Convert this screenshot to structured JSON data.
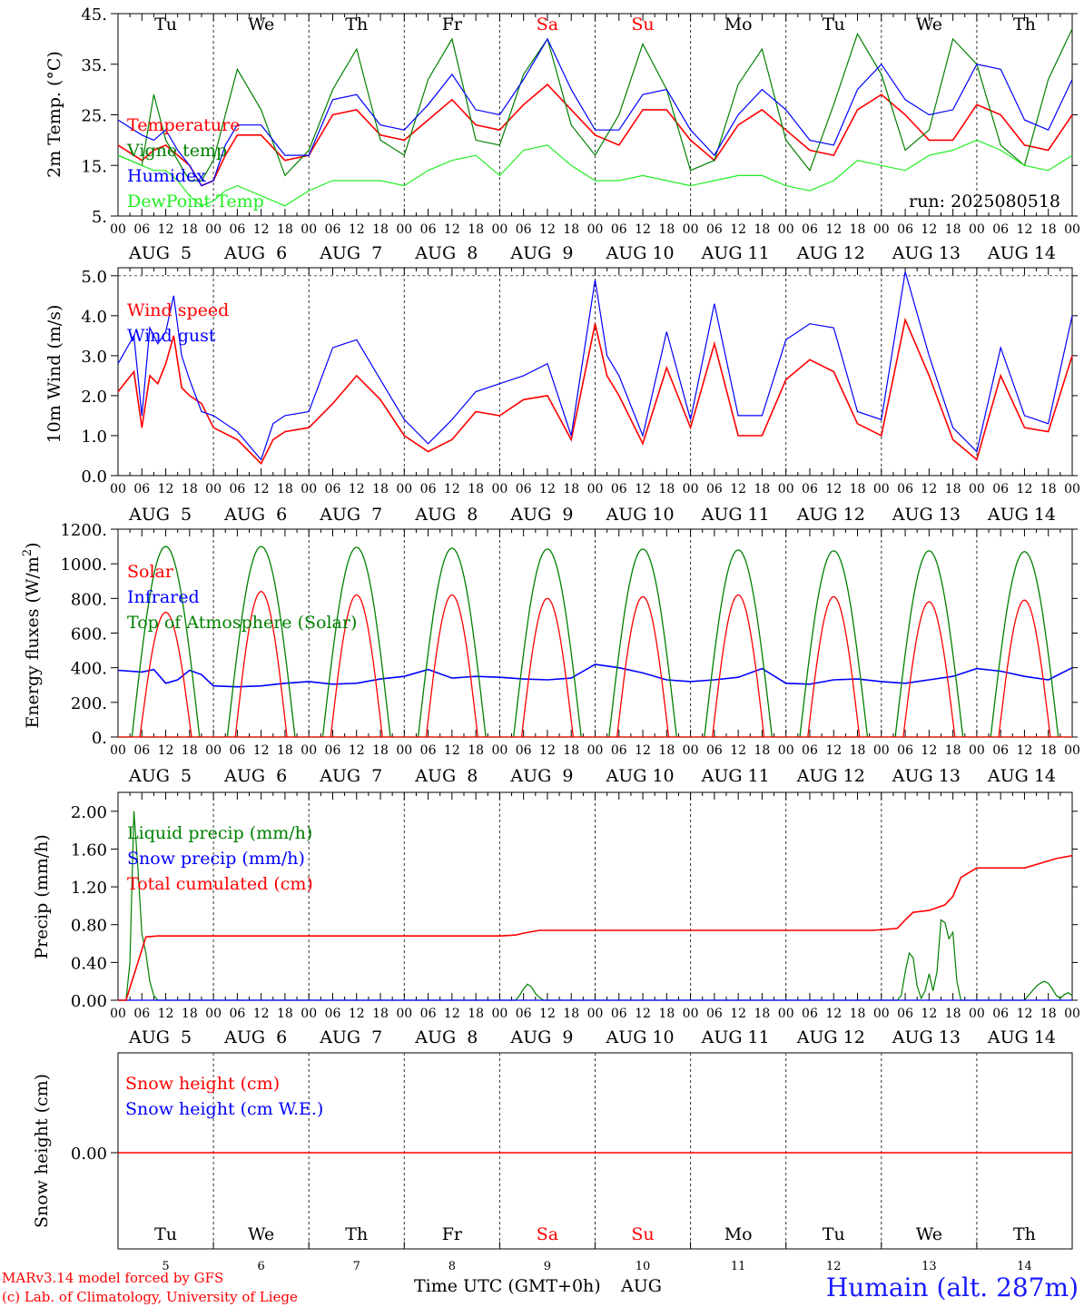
{
  "colors": {
    "red": "#ff0000",
    "green": "#008000",
    "lightgreen": "#22ee22",
    "blue": "#0000ff",
    "humain": "#1a1aff"
  },
  "days": [
    "Tu",
    "We",
    "Th",
    "Fr",
    "Sa",
    "Su",
    "Mo",
    "Tu",
    "We",
    "Th"
  ],
  "weekend_days": [
    "Sa",
    "Su"
  ],
  "hour_ticks": [
    "00",
    "06",
    "12",
    "18"
  ],
  "dates_under": [
    "AUG  5",
    "AUG  6",
    "AUG  7",
    "AUG  8",
    "AUG  9",
    "AUG 10",
    "AUG 11",
    "AUG 12",
    "AUG 13",
    "AUG 14"
  ],
  "bottom_dates": [
    "5",
    "6",
    "7",
    "8",
    "9",
    "10",
    "11",
    "12",
    "13",
    "14"
  ],
  "footer": {
    "model_line": "MARv3.14 model forced by GFS",
    "copyright_line": "(c) Lab. of Climatology, University of Liege",
    "axis_title": "Time UTC (GMT+0h)",
    "month": "AUG",
    "station": "Humain (alt. 287m)"
  },
  "chart_data": [
    {
      "type": "line",
      "id": "temp",
      "ylabel": "2m Temp. (°C)",
      "ylim": [
        5,
        45
      ],
      "ytick_labels": [
        "5.",
        "15.",
        "25.",
        "35.",
        "45."
      ],
      "ytick_values": [
        5,
        15,
        25,
        35,
        45
      ],
      "annotation": "run: 2025080518",
      "x_unit": "hours from 2025-08-05 00 UTC",
      "series": [
        {
          "name": "Temperature",
          "color": "#ff0000",
          "x": [
            0,
            6,
            9,
            12,
            15,
            18,
            21,
            24,
            27,
            30,
            36,
            42,
            48,
            54,
            60,
            66,
            72,
            78,
            84,
            90,
            96,
            102,
            108,
            114,
            120,
            126,
            132,
            138,
            144,
            150,
            156,
            162,
            168,
            174,
            180,
            186,
            192,
            198,
            204,
            210,
            216,
            222,
            228,
            234,
            240
          ],
          "y": [
            19,
            16,
            18,
            19,
            17,
            15,
            11,
            12,
            17,
            21,
            21,
            16,
            17,
            25,
            26,
            21,
            20,
            24,
            28,
            23,
            22,
            27,
            31,
            26,
            21,
            19,
            26,
            26,
            20,
            16,
            23,
            26,
            22,
            18,
            17,
            26,
            29,
            25,
            20,
            20,
            27,
            25,
            19,
            18,
            25
          ]
        },
        {
          "name": "Vigne temp",
          "color": "#008000",
          "x": [
            0,
            6,
            9,
            12,
            15,
            18,
            21,
            24,
            27,
            30,
            36,
            42,
            48,
            54,
            60,
            66,
            72,
            78,
            84,
            90,
            96,
            102,
            108,
            114,
            120,
            126,
            132,
            138,
            144,
            150,
            156,
            162,
            168,
            174,
            180,
            186,
            192,
            198,
            204,
            210,
            216,
            222,
            228,
            234,
            240
          ],
          "y": [
            17,
            15,
            29,
            20,
            16,
            12,
            12,
            16,
            25,
            34,
            26,
            13,
            18,
            30,
            38,
            20,
            17,
            32,
            40,
            20,
            19,
            33,
            40,
            23,
            17,
            25,
            39,
            30,
            14,
            16,
            31,
            38,
            20,
            14,
            27,
            41,
            33,
            18,
            22,
            40,
            35,
            19,
            15,
            32,
            42
          ]
        },
        {
          "name": "Humidex",
          "color": "#0000ff",
          "x": [
            0,
            6,
            9,
            12,
            15,
            18,
            21,
            24,
            27,
            30,
            36,
            42,
            48,
            54,
            60,
            66,
            72,
            78,
            84,
            90,
            96,
            102,
            108,
            114,
            120,
            126,
            132,
            138,
            144,
            150,
            156,
            162,
            168,
            174,
            180,
            186,
            192,
            198,
            204,
            210,
            216,
            222,
            228,
            234,
            240
          ],
          "y": [
            24,
            21,
            20,
            22,
            18,
            15,
            11,
            12,
            19,
            23,
            23,
            17,
            17,
            28,
            29,
            23,
            22,
            27,
            33,
            26,
            25,
            32,
            40,
            30,
            22,
            22,
            29,
            30,
            22,
            17,
            25,
            30,
            26,
            20,
            19,
            30,
            35,
            28,
            25,
            26,
            35,
            34,
            24,
            22,
            32
          ]
        },
        {
          "name": "DewPoint Temp",
          "color": "#22ee22",
          "x": [
            0,
            6,
            9,
            12,
            15,
            18,
            21,
            24,
            27,
            30,
            36,
            42,
            48,
            54,
            60,
            66,
            72,
            78,
            84,
            90,
            96,
            102,
            108,
            114,
            120,
            126,
            132,
            138,
            144,
            150,
            156,
            162,
            168,
            174,
            180,
            186,
            192,
            198,
            204,
            210,
            216,
            222,
            228,
            234,
            240
          ],
          "y": [
            17,
            15,
            14,
            14,
            12,
            9,
            7,
            8,
            10,
            11,
            9,
            7,
            10,
            12,
            12,
            12,
            11,
            14,
            16,
            17,
            13,
            18,
            19,
            15,
            12,
            12,
            13,
            12,
            11,
            12,
            13,
            13,
            11,
            10,
            12,
            16,
            15,
            14,
            17,
            18,
            20,
            18,
            15,
            14,
            17
          ]
        }
      ]
    },
    {
      "type": "line",
      "id": "wind",
      "ylabel": "10m Wind (m/s)",
      "ylim": [
        0,
        5.2
      ],
      "ytick_labels": [
        "0.0",
        "1.0",
        "2.0",
        "3.0",
        "4.0",
        "5.0"
      ],
      "ytick_values": [
        0,
        1,
        2,
        3,
        4,
        5
      ],
      "x_unit": "hours from 2025-08-05 00 UTC",
      "series": [
        {
          "name": "Wind speed",
          "color": "#ff0000",
          "x": [
            0,
            4,
            6,
            8,
            10,
            12,
            14,
            16,
            18,
            21,
            24,
            30,
            36,
            39,
            42,
            48,
            54,
            60,
            66,
            72,
            78,
            84,
            90,
            96,
            102,
            108,
            114,
            120,
            123,
            126,
            132,
            138,
            144,
            150,
            156,
            162,
            168,
            174,
            180,
            186,
            192,
            198,
            204,
            210,
            216,
            222,
            228,
            234,
            240
          ],
          "y": [
            2.1,
            2.6,
            1.2,
            2.5,
            2.3,
            2.8,
            3.5,
            2.2,
            2.0,
            1.8,
            1.2,
            0.9,
            0.3,
            0.9,
            1.1,
            1.2,
            1.8,
            2.5,
            1.9,
            1.0,
            0.6,
            0.9,
            1.6,
            1.5,
            1.9,
            2.0,
            0.9,
            3.8,
            2.5,
            2.0,
            0.8,
            2.7,
            1.2,
            3.3,
            1.0,
            1.0,
            2.4,
            2.9,
            2.6,
            1.3,
            1.0,
            3.9,
            2.5,
            0.9,
            0.4,
            2.5,
            1.2,
            1.1,
            3.0
          ]
        },
        {
          "name": "Wind gust",
          "color": "#0000ff",
          "x": [
            0,
            4,
            6,
            8,
            10,
            12,
            14,
            16,
            18,
            21,
            24,
            30,
            36,
            39,
            42,
            48,
            54,
            60,
            66,
            72,
            78,
            84,
            90,
            96,
            102,
            108,
            114,
            120,
            123,
            126,
            132,
            138,
            144,
            150,
            156,
            162,
            168,
            174,
            180,
            186,
            192,
            198,
            204,
            210,
            216,
            222,
            228,
            234,
            240
          ],
          "y": [
            2.8,
            3.5,
            1.5,
            3.7,
            3.3,
            3.6,
            4.5,
            3.0,
            2.4,
            1.6,
            1.5,
            1.1,
            0.4,
            1.3,
            1.5,
            1.6,
            3.2,
            3.4,
            2.4,
            1.4,
            0.8,
            1.4,
            2.1,
            2.3,
            2.5,
            2.8,
            1.0,
            4.9,
            3.0,
            2.5,
            1.0,
            3.6,
            1.4,
            4.3,
            1.5,
            1.5,
            3.4,
            3.8,
            3.7,
            1.6,
            1.4,
            5.1,
            3.0,
            1.2,
            0.6,
            3.2,
            1.5,
            1.3,
            4.0
          ]
        }
      ]
    },
    {
      "type": "line",
      "id": "energy",
      "ylabel": "Energy fluxes (W/m²)",
      "ylim": [
        0,
        1200
      ],
      "ytick_labels": [
        "0.",
        "200.",
        "400.",
        "600.",
        "800.",
        "1000.",
        "1200."
      ],
      "ytick_values": [
        0,
        200,
        400,
        600,
        800,
        1000,
        1200
      ],
      "x_unit": "hours from 2025-08-05 00 UTC",
      "toa_peaks": [
        1100,
        1100,
        1095,
        1090,
        1085,
        1085,
        1080,
        1075,
        1075,
        1070
      ],
      "solar_peaks": [
        720,
        840,
        820,
        820,
        800,
        810,
        820,
        810,
        780,
        790
      ],
      "series": [
        {
          "name": "Solar",
          "color": "#ff0000"
        },
        {
          "name": "Infrared",
          "color": "#0000ff",
          "x": [
            0,
            6,
            9,
            12,
            15,
            18,
            21,
            24,
            30,
            36,
            42,
            48,
            54,
            60,
            66,
            72,
            78,
            84,
            90,
            96,
            102,
            108,
            114,
            120,
            126,
            132,
            138,
            144,
            150,
            156,
            162,
            168,
            174,
            180,
            186,
            192,
            198,
            204,
            210,
            216,
            222,
            228,
            234,
            240
          ],
          "y": [
            385,
            375,
            390,
            310,
            330,
            385,
            360,
            295,
            290,
            295,
            310,
            320,
            305,
            310,
            335,
            350,
            390,
            340,
            350,
            345,
            335,
            330,
            340,
            420,
            400,
            370,
            330,
            320,
            330,
            345,
            395,
            310,
            305,
            330,
            335,
            320,
            310,
            330,
            350,
            395,
            380,
            350,
            330,
            400
          ]
        },
        {
          "name": "Top of Atmosphere (Solar)",
          "color": "#008000"
        }
      ]
    },
    {
      "type": "line",
      "id": "precip",
      "ylabel": "Precip (mm/h)",
      "ylim": [
        0,
        2.2
      ],
      "ytick_labels": [
        "0.00",
        "0.40",
        "0.80",
        "1.20",
        "1.60",
        "2.00"
      ],
      "ytick_values": [
        0,
        0.4,
        0.8,
        1.2,
        1.6,
        2.0
      ],
      "x_unit": "hours from 2025-08-05 00 UTC",
      "series": [
        {
          "name": "Liquid precip (mm/h)",
          "color": "#008000",
          "x": [
            0,
            2,
            3,
            4,
            5,
            6,
            7,
            8,
            9,
            10,
            11,
            12,
            100,
            101,
            102,
            103,
            104,
            105,
            106,
            107,
            108,
            196,
            197,
            198,
            199,
            200,
            201,
            202,
            203,
            204,
            205,
            206,
            207,
            208,
            209,
            210,
            211,
            212,
            228,
            229,
            230,
            231,
            232,
            233,
            234,
            235,
            236,
            237,
            238,
            239,
            240
          ],
          "y": [
            0,
            0,
            0.4,
            2.0,
            1.4,
            0.7,
            0.5,
            0.2,
            0.05,
            0,
            0,
            0,
            0,
            0.05,
            0.12,
            0.17,
            0.14,
            0.07,
            0.03,
            0,
            0,
            0,
            0.05,
            0.3,
            0.5,
            0.45,
            0.15,
            0.02,
            0.1,
            0.28,
            0.1,
            0.3,
            0.85,
            0.82,
            0.65,
            0.72,
            0.2,
            0,
            0,
            0.05,
            0.1,
            0.15,
            0.18,
            0.2,
            0.18,
            0.12,
            0.05,
            0.02,
            0.06,
            0.08,
            0.05
          ]
        },
        {
          "name": "Snow precip (mm/h)",
          "color": "#0000ff",
          "x": [
            0,
            240
          ],
          "y": [
            0,
            0
          ]
        },
        {
          "name": "Total cumulated (cm)",
          "color": "#ff0000",
          "x": [
            0,
            2,
            5,
            7,
            10,
            24,
            48,
            96,
            100,
            102,
            106,
            120,
            144,
            168,
            190,
            196,
            198,
            200,
            204,
            208,
            210,
            212,
            216,
            222,
            228,
            232,
            236,
            240
          ],
          "y": [
            0,
            0,
            0.4,
            0.67,
            0.68,
            0.68,
            0.68,
            0.68,
            0.69,
            0.71,
            0.74,
            0.74,
            0.74,
            0.74,
            0.74,
            0.76,
            0.85,
            0.93,
            0.95,
            1.01,
            1.1,
            1.3,
            1.4,
            1.4,
            1.4,
            1.45,
            1.5,
            1.53
          ]
        }
      ]
    },
    {
      "type": "line",
      "id": "snow",
      "ylabel": "Snow height (cm)",
      "ytick_labels": [
        "0.00"
      ],
      "ytick_values": [
        0
      ],
      "x_unit": "hours from 2025-08-05 00 UTC",
      "series": [
        {
          "name": "Snow height (cm)",
          "color": "#ff0000",
          "x": [
            0,
            240
          ],
          "y": [
            0,
            0
          ]
        },
        {
          "name": "Snow height (cm W.E.)",
          "color": "#0000ff"
        }
      ]
    }
  ]
}
